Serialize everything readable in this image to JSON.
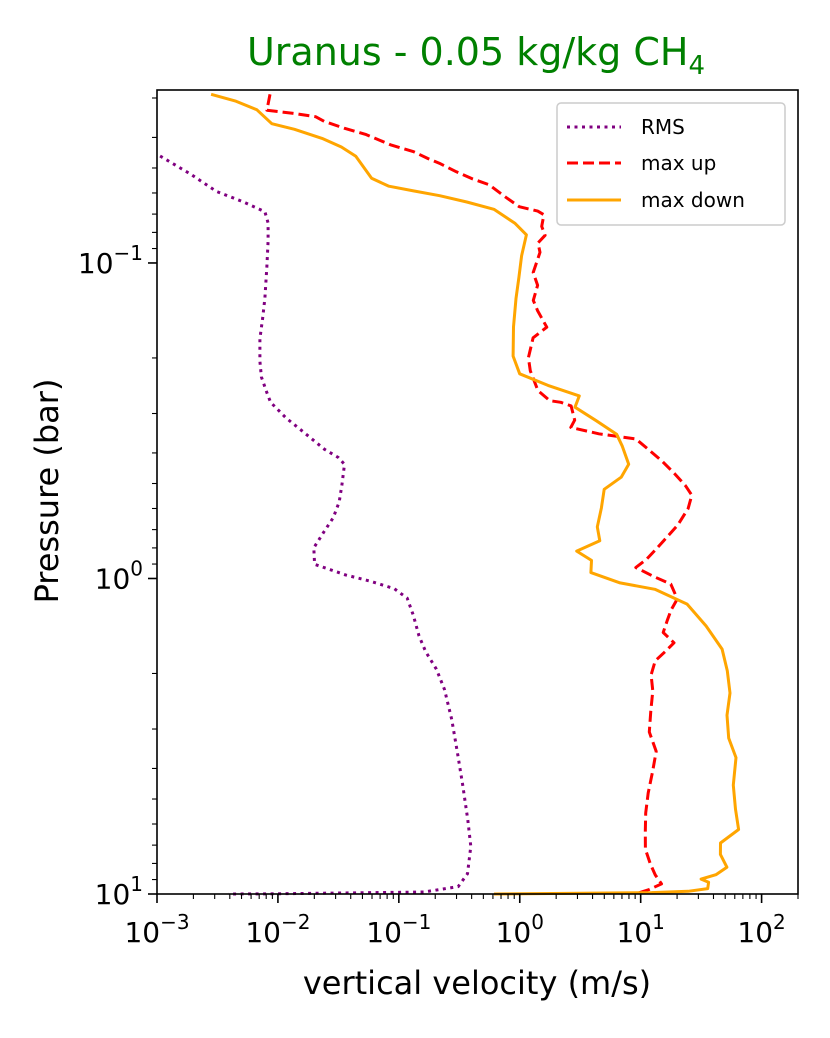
{
  "chart_data": {
    "type": "line",
    "title": "Uranus - 0.05 kg/kg CH",
    "title_subscript": "4",
    "title_color": "#008000",
    "xlabel": "vertical velocity (m/s)",
    "ylabel": "Pressure (bar)",
    "xscale": "log",
    "yscale": "log",
    "y_inverted": true,
    "xlim": [
      0.001,
      200
    ],
    "ylim": [
      10,
      0.0283
    ],
    "grid": false,
    "legend_position": "upper right",
    "x_ticks": [
      {
        "base": "10",
        "exp": "−3"
      },
      {
        "base": "10",
        "exp": "−2"
      },
      {
        "base": "10",
        "exp": "−1"
      },
      {
        "base": "10",
        "exp": "0"
      },
      {
        "base": "10",
        "exp": "1"
      },
      {
        "base": "10",
        "exp": "2"
      }
    ],
    "y_ticks": [
      {
        "base": "10",
        "exp": "−1"
      },
      {
        "base": "10",
        "exp": "0"
      },
      {
        "base": "10",
        "exp": "1"
      }
    ],
    "series": [
      {
        "name": "RMS",
        "color": "#800080",
        "style": "dotted",
        "points": [
          [
            0.00106,
            0.0458
          ],
          [
            0.0019,
            0.0523
          ],
          [
            0.0031,
            0.0593
          ],
          [
            0.0051,
            0.0639
          ],
          [
            0.0078,
            0.0688
          ],
          [
            0.0083,
            0.0747
          ],
          [
            0.0083,
            0.0851
          ],
          [
            0.0081,
            0.1023
          ],
          [
            0.0078,
            0.1291
          ],
          [
            0.0075,
            0.1483
          ],
          [
            0.0071,
            0.1736
          ],
          [
            0.0071,
            0.2048
          ],
          [
            0.0073,
            0.2298
          ],
          [
            0.0081,
            0.2578
          ],
          [
            0.0087,
            0.2765
          ],
          [
            0.0117,
            0.3103
          ],
          [
            0.0154,
            0.3376
          ],
          [
            0.0243,
            0.3896
          ],
          [
            0.0316,
            0.4136
          ],
          [
            0.0355,
            0.4347
          ],
          [
            0.0338,
            0.5054
          ],
          [
            0.0321,
            0.5718
          ],
          [
            0.0287,
            0.6413
          ],
          [
            0.0239,
            0.7131
          ],
          [
            0.0198,
            0.7995
          ],
          [
            0.0201,
            0.9016
          ],
          [
            0.0362,
            0.9742
          ],
          [
            0.0584,
            1.0207
          ],
          [
            0.0916,
            1.0764
          ],
          [
            0.1173,
            1.1544
          ],
          [
            0.1318,
            1.3072
          ],
          [
            0.1469,
            1.5209
          ],
          [
            0.1669,
            1.7057
          ],
          [
            0.2045,
            1.9394
          ],
          [
            0.2387,
            2.2488
          ],
          [
            0.2742,
            2.8051
          ],
          [
            0.3057,
            3.5765
          ],
          [
            0.3376,
            4.5134
          ],
          [
            0.3719,
            5.8216
          ],
          [
            0.3936,
            7.0659
          ],
          [
            0.3695,
            8.6227
          ],
          [
            0.3098,
            9.4736
          ],
          [
            0.1618,
            9.8577
          ],
          [
            0.0095,
            9.9877
          ],
          [
            0.0039,
            10.0
          ]
        ]
      },
      {
        "name": "max up",
        "color": "#ff0000",
        "style": "dashed",
        "points": [
          [
            0.0086,
            0.0292
          ],
          [
            0.0081,
            0.0328
          ],
          [
            0.0137,
            0.0336
          ],
          [
            0.0205,
            0.0344
          ],
          [
            0.0242,
            0.0356
          ],
          [
            0.0353,
            0.0374
          ],
          [
            0.0537,
            0.0392
          ],
          [
            0.0853,
            0.0422
          ],
          [
            0.1325,
            0.0444
          ],
          [
            0.1745,
            0.0467
          ],
          [
            0.221,
            0.0485
          ],
          [
            0.2995,
            0.0514
          ],
          [
            0.4087,
            0.0542
          ],
          [
            0.5564,
            0.0565
          ],
          [
            0.7653,
            0.0619
          ],
          [
            0.9886,
            0.0663
          ],
          [
            1.4059,
            0.0685
          ],
          [
            1.5826,
            0.0703
          ],
          [
            1.5181,
            0.0766
          ],
          [
            1.6211,
            0.0817
          ],
          [
            1.4152,
            0.0864
          ],
          [
            1.4709,
            0.0925
          ],
          [
            1.2911,
            0.1072
          ],
          [
            1.4041,
            0.1177
          ],
          [
            1.2942,
            0.1314
          ],
          [
            1.4073,
            0.1419
          ],
          [
            1.6728,
            0.1598
          ],
          [
            1.2883,
            0.1726
          ],
          [
            1.1788,
            0.1997
          ],
          [
            1.2217,
            0.2197
          ],
          [
            1.4125,
            0.2537
          ],
          [
            1.7719,
            0.2733
          ],
          [
            2.1858,
            0.2765
          ],
          [
            2.6585,
            0.2838
          ],
          [
            2.8458,
            0.3148
          ],
          [
            2.6418,
            0.3321
          ],
          [
            4.5041,
            0.3478
          ],
          [
            9.1072,
            0.3612
          ],
          [
            11.6281,
            0.3903
          ],
          [
            14.9581,
            0.4241
          ],
          [
            18.9641,
            0.4646
          ],
          [
            23.4213,
            0.5077
          ],
          [
            26.4908,
            0.5446
          ],
          [
            24.6895,
            0.6005
          ],
          [
            20.2484,
            0.6771
          ],
          [
            15.5658,
            0.7578
          ],
          [
            13.1302,
            0.8141
          ],
          [
            11.2398,
            0.8675
          ],
          [
            9.1074,
            0.9232
          ],
          [
            12.9084,
            0.987
          ],
          [
            17.7357,
            1.0415
          ],
          [
            19.3317,
            1.1224
          ],
          [
            19.7028,
            1.1766
          ],
          [
            17.8373,
            1.2583
          ],
          [
            16.6041,
            1.3567
          ],
          [
            15.3434,
            1.4829
          ],
          [
            18.8434,
            1.5985
          ],
          [
            16.0232,
            1.7022
          ],
          [
            13.1829,
            1.8254
          ],
          [
            12.2012,
            2.0216
          ],
          [
            12.6007,
            2.2713
          ],
          [
            12.1219,
            2.6311
          ],
          [
            11.7734,
            3.0658
          ],
          [
            13.4458,
            3.5312
          ],
          [
            12.5163,
            4.1049
          ],
          [
            11.5434,
            4.7818
          ],
          [
            10.9928,
            5.5364
          ],
          [
            10.9221,
            6.3743
          ],
          [
            10.9436,
            7.2104
          ],
          [
            12.008,
            8.0213
          ],
          [
            13.2128,
            8.7049
          ],
          [
            14.8707,
            9.2914
          ],
          [
            11.7569,
            9.6744
          ],
          [
            9.7522,
            9.9085
          ],
          [
            9.5227,
            10.0
          ]
        ]
      },
      {
        "name": "max down",
        "color": "#ffa500",
        "style": "solid",
        "points": [
          [
            0.0028,
            0.0292
          ],
          [
            0.0045,
            0.0307
          ],
          [
            0.0067,
            0.0327
          ],
          [
            0.0089,
            0.0362
          ],
          [
            0.0137,
            0.0377
          ],
          [
            0.0232,
            0.0403
          ],
          [
            0.0335,
            0.0429
          ],
          [
            0.0441,
            0.0459
          ],
          [
            0.0595,
            0.0539
          ],
          [
            0.0828,
            0.0571
          ],
          [
            0.1323,
            0.0591
          ],
          [
            0.2177,
            0.0612
          ],
          [
            0.3647,
            0.0641
          ],
          [
            0.6115,
            0.0676
          ],
          [
            0.9143,
            0.0749
          ],
          [
            1.1346,
            0.0814
          ],
          [
            1.0359,
            0.0949
          ],
          [
            0.9831,
            0.1111
          ],
          [
            0.9311,
            0.1296
          ],
          [
            0.8876,
            0.1594
          ],
          [
            0.8815,
            0.1973
          ],
          [
            0.9993,
            0.2245
          ],
          [
            1.7115,
            0.2444
          ],
          [
            3.1095,
            0.2638
          ],
          [
            2.8648,
            0.2865
          ],
          [
            4.3046,
            0.3165
          ],
          [
            6.3201,
            0.3489
          ],
          [
            7.0437,
            0.3808
          ],
          [
            7.9549,
            0.4343
          ],
          [
            6.9024,
            0.4775
          ],
          [
            4.9938,
            0.5216
          ],
          [
            4.7307,
            0.5976
          ],
          [
            4.3811,
            0.6862
          ],
          [
            4.5914,
            0.7598
          ],
          [
            2.955,
            0.8188
          ],
          [
            3.9165,
            0.8766
          ],
          [
            3.8751,
            0.958
          ],
          [
            6.7599,
            1.0324
          ],
          [
            13.1037,
            1.0818
          ],
          [
            24.1893,
            1.2056
          ],
          [
            34.7524,
            1.4145
          ],
          [
            47.1004,
            1.6739
          ],
          [
            52.0745,
            1.9617
          ],
          [
            54.8138,
            2.3071
          ],
          [
            51.6983,
            2.7124
          ],
          [
            53.4919,
            3.2045
          ],
          [
            61.4516,
            3.6962
          ],
          [
            58.3662,
            4.5164
          ],
          [
            60.8513,
            5.3856
          ],
          [
            64.4812,
            6.2458
          ],
          [
            45.7022,
            6.8928
          ],
          [
            45.6213,
            7.4882
          ],
          [
            51.6102,
            8.2219
          ],
          [
            41.9051,
            8.6853
          ],
          [
            31.5758,
            8.9718
          ],
          [
            36.4541,
            9.1844
          ],
          [
            35.8627,
            9.6157
          ],
          [
            24.6858,
            9.8084
          ],
          [
            12.3216,
            9.8964
          ],
          [
            1.4074,
            9.9698
          ],
          [
            0.6122,
            10.0
          ]
        ]
      }
    ]
  }
}
